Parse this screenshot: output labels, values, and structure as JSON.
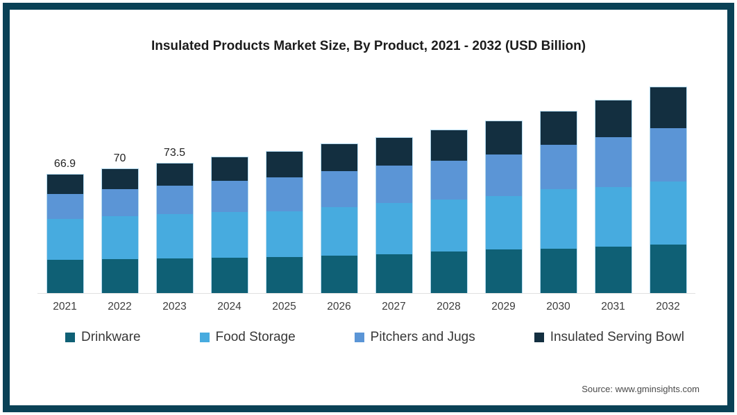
{
  "title": "Insulated Products Market Size, By Product, 2021 - 2032 (USD Billion)",
  "source": "Source: www.gminsights.com",
  "frame": {
    "border_color": "#0a4156",
    "background": "#ffffff"
  },
  "chart_data": {
    "type": "bar",
    "stacked": true,
    "title": "Insulated Products Market Size, By Product, 2021 - 2032 (USD Billion)",
    "xlabel": "",
    "ylabel": "USD Billion",
    "grid": false,
    "legend_position": "bottom",
    "axis_line_color": "#e0e0e0",
    "categories": [
      "2021",
      "2022",
      "2023",
      "2024",
      "2025",
      "2026",
      "2027",
      "2028",
      "2029",
      "2030",
      "2031",
      "2032"
    ],
    "series": [
      {
        "name": "Drinkware",
        "color": "#0f6075",
        "values": [
          18.7,
          19.2,
          19.6,
          20.0,
          20.4,
          21.2,
          22.0,
          23.5,
          24.7,
          25.1,
          26.3,
          27.4
        ]
      },
      {
        "name": "Food Storage",
        "color": "#47abdf",
        "values": [
          23.1,
          24.2,
          25.1,
          25.9,
          25.9,
          27.4,
          29.0,
          29.4,
          30.2,
          33.7,
          33.7,
          35.7
        ]
      },
      {
        "name": "Pitchers and Jugs",
        "color": "#5b95d6",
        "values": [
          14.1,
          15.1,
          16.1,
          17.6,
          19.2,
          20.4,
          21.2,
          22.0,
          23.5,
          25.1,
          28.2,
          30.2
        ]
      },
      {
        "name": "Insulated Serving Bowl",
        "color": "#132f40",
        "values": [
          11.0,
          11.5,
          12.7,
          13.3,
          14.5,
          15.3,
          15.7,
          17.3,
          18.8,
          18.8,
          20.8,
          23.1
        ]
      }
    ],
    "totals": [
      66.9,
      70,
      73.5,
      76.8,
      80.0,
      84.3,
      87.9,
      92.2,
      97.2,
      102.7,
      109.0,
      116.4
    ],
    "total_labels": [
      "66.9",
      "70",
      "73.5",
      "",
      "",
      "",
      "",
      "",
      "",
      "",
      "",
      ""
    ]
  }
}
